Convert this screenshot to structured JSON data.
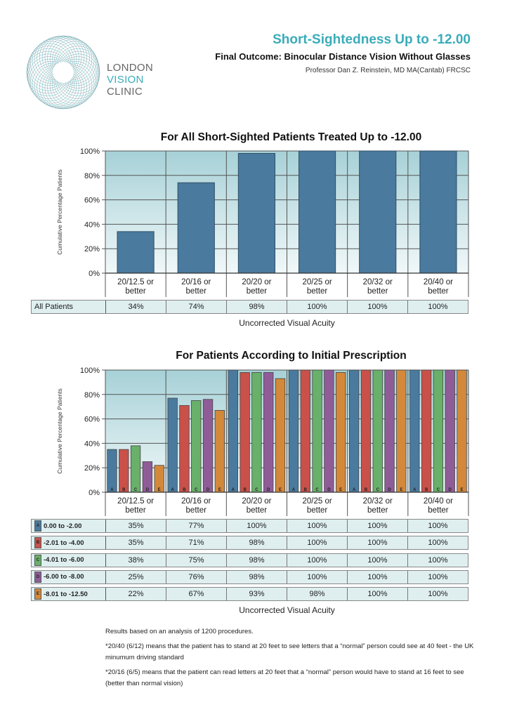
{
  "header": {
    "title": "Short-Sightedness Up to -12.00",
    "subtitle": "Final Outcome: Binocular Distance Vision Without Glasses",
    "author": "Professor Dan Z. Reinstein, MD MA(Cantab) FRCSC",
    "logo": {
      "line1": "LONDON",
      "line2": "VISION",
      "line3": "CLINIC"
    }
  },
  "chart_data": [
    {
      "type": "bar",
      "title": "For All Short-Sighted Patients Treated Up to -12.00",
      "ylabel": "Cumulative Percentage Patients",
      "xlabel": "Uncorrected Visual Acuity",
      "ylim": [
        0,
        100
      ],
      "yticks": [
        "0%",
        "20%",
        "40%",
        "60%",
        "80%",
        "100%"
      ],
      "grid": true,
      "categories": [
        "20/12.5 or better",
        "20/16 or better",
        "20/20 or better",
        "20/25 or better",
        "20/32 or better",
        "20/40 or better"
      ],
      "series": [
        {
          "name": "All Patients",
          "values": [
            34,
            74,
            98,
            100,
            100,
            100
          ],
          "labels": [
            "34%",
            "74%",
            "98%",
            "100%",
            "100%",
            "100%"
          ],
          "color": "#4a7a9e"
        }
      ]
    },
    {
      "type": "bar",
      "title": "For Patients According to Initial Prescription",
      "ylabel": "Cumulative Percentage Patients",
      "xlabel": "Uncorrected Visual Acuity",
      "ylim": [
        0,
        100
      ],
      "yticks": [
        "0%",
        "20%",
        "40%",
        "60%",
        "80%",
        "100%"
      ],
      "grid": true,
      "categories": [
        "20/12.5 or better",
        "20/16 or better",
        "20/20 or better",
        "20/25 or better",
        "20/32 or better",
        "20/40 or better"
      ],
      "series": [
        {
          "letter": "A",
          "name": "0.00 to -2.00",
          "values": [
            35,
            77,
            100,
            100,
            100,
            100
          ],
          "labels": [
            "35%",
            "77%",
            "100%",
            "100%",
            "100%",
            "100%"
          ],
          "color": "#4a7a9e"
        },
        {
          "letter": "B",
          "name": "-2.01 to -4.00",
          "values": [
            35,
            71,
            98,
            100,
            100,
            100
          ],
          "labels": [
            "35%",
            "71%",
            "98%",
            "100%",
            "100%",
            "100%"
          ],
          "color": "#c9514a"
        },
        {
          "letter": "C",
          "name": "-4.01 to -6.00",
          "values": [
            38,
            75,
            98,
            100,
            100,
            100
          ],
          "labels": [
            "38%",
            "75%",
            "98%",
            "100%",
            "100%",
            "100%"
          ],
          "color": "#69b06a"
        },
        {
          "letter": "D",
          "name": "-6.00 to -8.00",
          "values": [
            25,
            76,
            98,
            100,
            100,
            100
          ],
          "labels": [
            "25%",
            "76%",
            "98%",
            "100%",
            "100%",
            "100%"
          ],
          "color": "#8f5c98"
        },
        {
          "letter": "E",
          "name": "-8.01 to -12.50",
          "values": [
            22,
            67,
            93,
            98,
            100,
            100
          ],
          "labels": [
            "22%",
            "67%",
            "93%",
            "98%",
            "100%",
            "100%"
          ],
          "color": "#d4883a"
        }
      ]
    }
  ],
  "notes": [
    "Results based on an analysis of 1200 procedures.",
    "*20/40 (6/12) means that the patient has to stand at 20 feet to see letters that a “normal” person could see at 40 feet - the UK minumum driving standard",
    "*20/16 (6/5) means that the patient can read letters at 20 feet that a “normal” person would have to stand at 16 feet to see (better than normal vision)"
  ]
}
